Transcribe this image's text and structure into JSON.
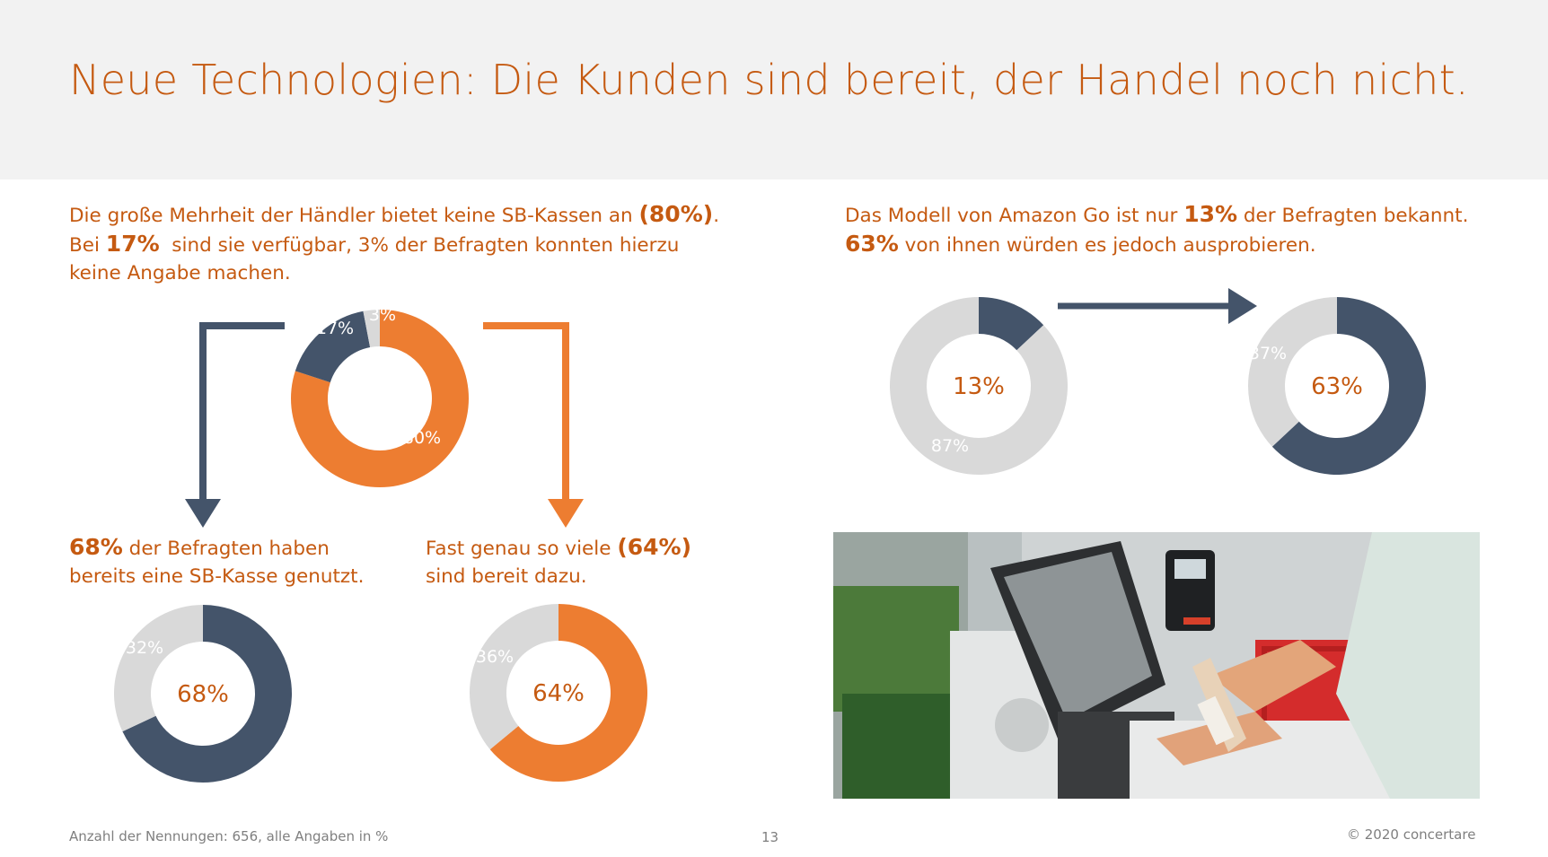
{
  "title": "Neue Technologien: Die Kunden sind bereit, der Handel noch nicht.",
  "colors": {
    "orange": "#ed7d31",
    "navy": "#44546a",
    "grey": "#d9d9d9",
    "title": "#c55a11"
  },
  "left_para": {
    "l1a": "Die große Mehrheit der Händler bietet keine SB-Kassen an ",
    "l1b": "(80%)",
    "l1c": ".",
    "l2a": "Bei ",
    "l2b": "17%",
    "l2c": "  sind sie verfügbar, 3% der Befragten konnten hierzu",
    "l3": "keine Angabe machen."
  },
  "right_para": {
    "l1a": "Das Modell von Amazon Go ist nur ",
    "l1b": "13%",
    "l1c": " der Befragten bekannt.",
    "l2a": "63%",
    "l2b": " von ihnen würden es jedoch ausprobieren."
  },
  "bottom_left_para": {
    "l1a": "68%",
    "l1b": " der Befragten haben",
    "l2": "bereits eine SB-Kasse genutzt."
  },
  "bottom_mid_para": {
    "l1a": "Fast genau so viele ",
    "l1b": "(64%)",
    "l2": "sind bereit dazu."
  },
  "chart_data": [
    {
      "type": "pie",
      "variant": "donut",
      "slices": [
        {
          "label": "80%",
          "value": 80,
          "color": "#ed7d31"
        },
        {
          "label": "17%",
          "value": 17,
          "color": "#44546a"
        },
        {
          "label": "3%",
          "value": 3,
          "color": "#d9d9d9"
        }
      ]
    },
    {
      "type": "pie",
      "variant": "donut",
      "center_label": "68%",
      "slices": [
        {
          "label": "68%",
          "value": 68,
          "color": "#44546a"
        },
        {
          "label": "32%",
          "value": 32,
          "color": "#d9d9d9"
        }
      ]
    },
    {
      "type": "pie",
      "variant": "donut",
      "center_label": "64%",
      "slices": [
        {
          "label": "64%",
          "value": 64,
          "color": "#ed7d31"
        },
        {
          "label": "36%",
          "value": 36,
          "color": "#d9d9d9"
        }
      ]
    },
    {
      "type": "pie",
      "variant": "donut",
      "center_label": "13%",
      "slices": [
        {
          "label": "13%",
          "value": 13,
          "color": "#44546a"
        },
        {
          "label": "87%",
          "value": 87,
          "color": "#d9d9d9"
        }
      ]
    },
    {
      "type": "pie",
      "variant": "donut",
      "center_label": "63%",
      "slices": [
        {
          "label": "63%",
          "value": 63,
          "color": "#44546a"
        },
        {
          "label": "37%",
          "value": 37,
          "color": "#d9d9d9"
        }
      ]
    }
  ],
  "footer": {
    "note": "Anzahl der Nennungen: 656, alle Angaben in %",
    "page": "13",
    "copyright": "© 2020 concertare"
  }
}
